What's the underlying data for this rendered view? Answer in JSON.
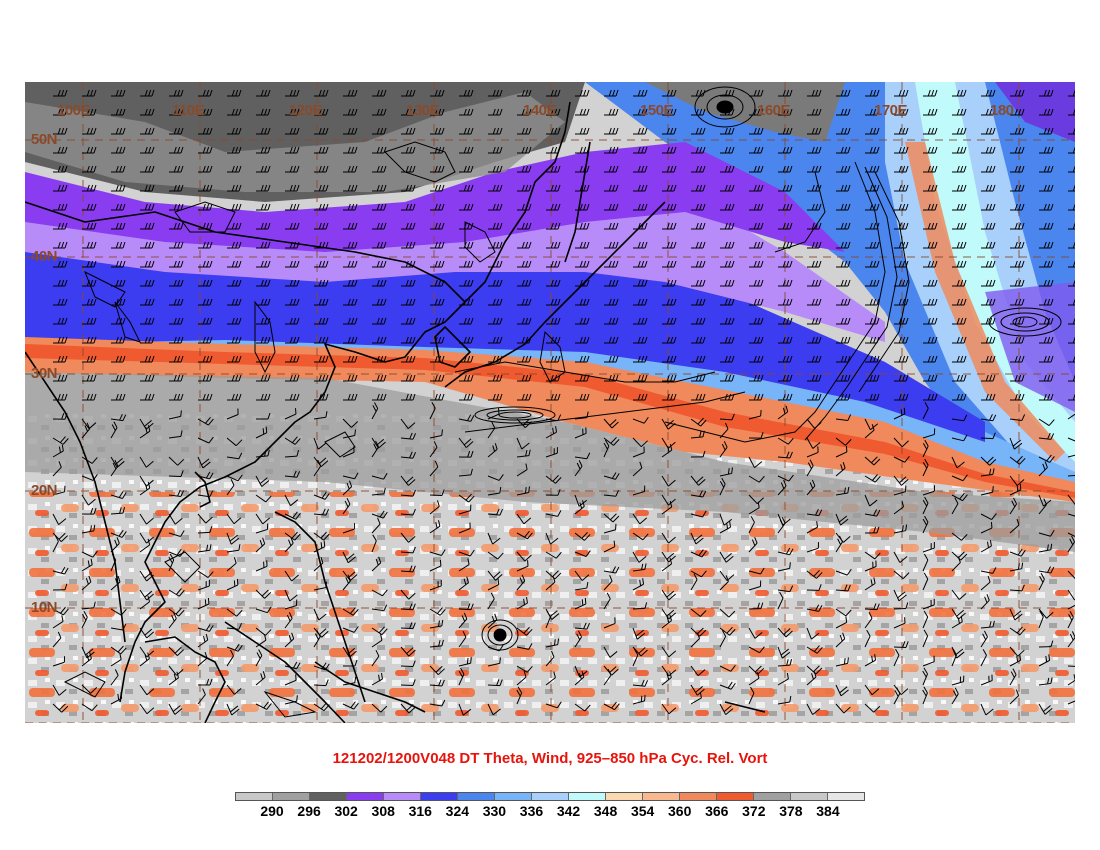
{
  "title": "121202/1200V048 DT Theta, Wind, 925–850 hPa Cyc. Rel. Vort",
  "colors": {
    "title": "#e8130c",
    "grid_line": "#8a4a2a",
    "coast_line": "#000000",
    "vorticity_contour": "#000000",
    "wind_barb": "#000000"
  },
  "map": {
    "projection": "cylindrical equidistant",
    "lon_range": [
      95,
      185
    ],
    "lat_range": [
      0,
      55
    ],
    "lon_labels": [
      {
        "lon": 100,
        "text": "100E"
      },
      {
        "lon": 110,
        "text": "110E"
      },
      {
        "lon": 120,
        "text": "120E"
      },
      {
        "lon": 130,
        "text": "130E"
      },
      {
        "lon": 140,
        "text": "140E"
      },
      {
        "lon": 150,
        "text": "150E"
      },
      {
        "lon": 160,
        "text": "160E"
      },
      {
        "lon": 170,
        "text": "170E"
      },
      {
        "lon": 180,
        "text": "180"
      }
    ],
    "lat_labels": [
      {
        "lat": 50,
        "text": "50N"
      },
      {
        "lat": 40,
        "text": "40N"
      },
      {
        "lat": 30,
        "text": "30N"
      },
      {
        "lat": 20,
        "text": "20N"
      },
      {
        "lat": 10,
        "text": "10N"
      }
    ]
  },
  "colorbar": {
    "ticks": [
      290,
      296,
      302,
      308,
      316,
      324,
      330,
      336,
      342,
      348,
      354,
      360,
      366,
      372,
      378,
      384
    ],
    "colors": [
      "#c8c8c8",
      "#a0a0a0",
      "#606060",
      "#8a3cf0",
      "#b88cf8",
      "#3c3cf0",
      "#4a86ee",
      "#78b4f8",
      "#a8d0fa",
      "#c0fafa",
      "#fad8b0",
      "#f8b890",
      "#f08a5c",
      "#f05a30",
      "#a0a0a0",
      "#c8c8c8",
      "#e6e6e6"
    ]
  }
}
